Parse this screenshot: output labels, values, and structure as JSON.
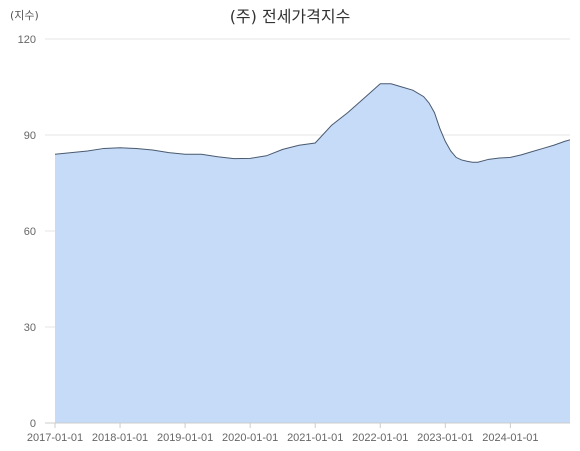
{
  "chart_data": {
    "type": "area",
    "title": "(주) 전세가격지수",
    "unit_label": "(지수)",
    "xlabel": "",
    "ylabel": "",
    "ylim": [
      0,
      120
    ],
    "yticks": [
      0,
      30,
      60,
      90,
      120
    ],
    "xlim": [
      "2017-01",
      "2024-12"
    ],
    "xticks": [
      "2017-01-01",
      "2018-01-01",
      "2019-01-01",
      "2020-01-01",
      "2021-01-01",
      "2022-01-01",
      "2023-01-01",
      "2024-01-01"
    ],
    "grid": true,
    "legend": "none",
    "fill_color": "#c5dbf7",
    "line_color": "#4a5a70",
    "grid_color": "#e6e6e6",
    "series": [
      {
        "x": [
          "2017-01",
          "2017-04",
          "2017-07",
          "2017-10",
          "2018-01",
          "2018-04",
          "2018-07",
          "2018-10",
          "2019-01",
          "2019-04",
          "2019-07",
          "2019-10",
          "2020-01",
          "2020-04",
          "2020-07",
          "2020-10",
          "2021-01",
          "2021-04",
          "2021-07",
          "2021-10",
          "2022-01",
          "2022-03",
          "2022-05",
          "2022-07",
          "2022-09",
          "2022-10",
          "2022-11",
          "2022-12",
          "2023-01",
          "2023-02",
          "2023-03",
          "2023-04",
          "2023-05",
          "2023-06",
          "2023-07",
          "2023-09",
          "2023-11",
          "2024-01",
          "2024-03",
          "2024-05",
          "2024-07",
          "2024-09",
          "2024-11",
          "2024-12"
        ],
        "values": [
          84,
          84.5,
          85,
          85.8,
          86,
          85.8,
          85.3,
          84.5,
          84,
          84,
          83.2,
          82.6,
          82.7,
          83.5,
          85.5,
          86.8,
          87.5,
          93,
          97,
          101.5,
          106,
          106,
          105,
          104,
          102,
          100,
          97,
          92,
          88,
          85,
          83,
          82.2,
          81.8,
          81.5,
          81.5,
          82.4,
          82.8,
          83,
          83.8,
          84.8,
          85.8,
          86.8,
          88,
          88.5
        ]
      }
    ]
  }
}
